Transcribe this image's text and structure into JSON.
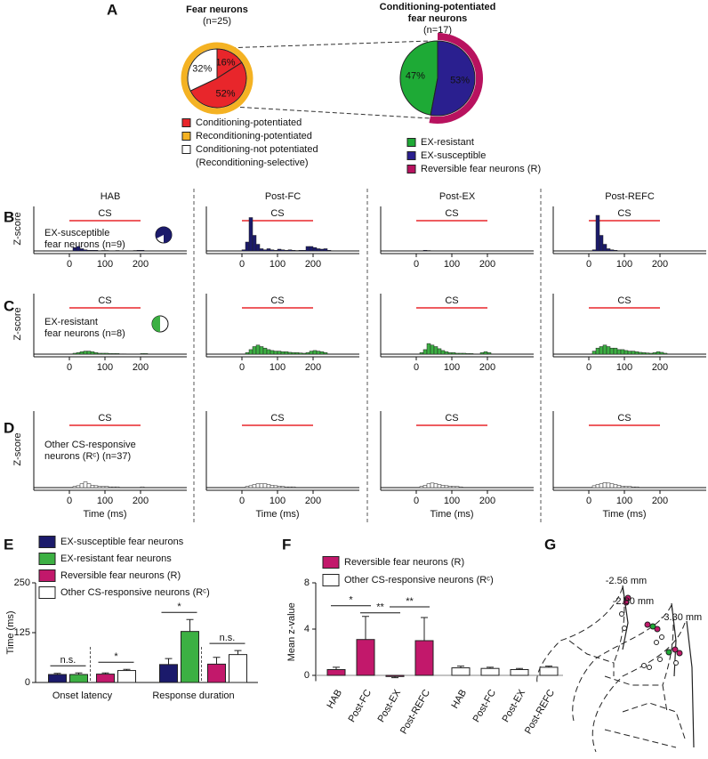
{
  "panel_labels": [
    "A",
    "B",
    "C",
    "D",
    "E",
    "F",
    "G"
  ],
  "chart_data": [
    {
      "type": "pie",
      "title": "Fear neurons",
      "subtitle": "(n=25)",
      "values": [
        16,
        52,
        32
      ],
      "value_labels": [
        "16%",
        "52%",
        "32%"
      ],
      "colors": [
        "#e8262b",
        "#e8262b",
        "#ffffff"
      ],
      "ring": "all",
      "ring_color": "#f4b223",
      "legend": [
        {
          "name": "Conditioning-potentiated",
          "color": "#e8262b"
        },
        {
          "name": "Reconditioning-potentiated",
          "color": "#f4b223"
        },
        {
          "name": "Conditioning-not potentiated",
          "color": "#ffffff"
        }
      ],
      "legend_note": "(Reconditioning-selective)"
    },
    {
      "type": "pie",
      "title": [
        "Conditioning-potentiated",
        "fear neurons"
      ],
      "subtitle": "(n=17)",
      "values": [
        47,
        53
      ],
      "value_labels": [
        "47%",
        "53%"
      ],
      "colors": [
        "#1eaa36",
        "#2a1f8f"
      ],
      "ring": "last",
      "ring_color": "#b8125f",
      "legend": [
        {
          "name": "EX-resistant",
          "color": "#1eaa36"
        },
        {
          "name": "EX-susceptible",
          "color": "#2a1f8f"
        },
        {
          "name": "Reversible fear neurons (R)",
          "color": "#b8125f"
        }
      ]
    },
    {
      "type": "psth",
      "x_label": "Time (ms)",
      "y_label": "Z-score",
      "xlim": [
        -100,
        330
      ],
      "xticks": [
        0,
        100,
        200
      ],
      "ylim": [
        0,
        20
      ],
      "cs_label": "CS",
      "cs_window": [
        0,
        200
      ],
      "bins": [
        0,
        10,
        20,
        30,
        40,
        50,
        60,
        70,
        80,
        90,
        100,
        110,
        120,
        130,
        140,
        150,
        160,
        170,
        180,
        190,
        200,
        210,
        220,
        230,
        240,
        250
      ],
      "columns": [
        "HAB",
        "Post-FC",
        "Post-EX",
        "Post-REFC"
      ],
      "rows": [
        {
          "name": [
            "EX-susceptible",
            "fear neurons (n=9)"
          ],
          "color": "#1b1a6b",
          "series": [
            [
              0,
              1.5,
              2,
              1,
              0.5,
              0.3,
              0.3,
              0.3,
              0,
              0.2,
              0.2,
              0,
              0,
              0.2,
              0,
              0,
              0,
              0,
              0.2,
              0.3,
              0.3,
              0,
              0,
              0,
              0
            ],
            [
              0.5,
              4,
              15,
              7,
              3,
              1,
              0.5,
              1,
              0.5,
              0.3,
              0.8,
              0.5,
              0.3,
              0.5,
              0.3,
              0.2,
              0.3,
              0.3,
              2,
              2,
              1.5,
              1,
              0.8,
              1,
              0.3
            ],
            [
              0,
              0,
              0.3,
              0.2,
              0,
              0,
              0,
              0,
              0,
              0,
              0,
              0,
              0,
              0,
              0,
              0,
              0,
              0,
              0,
              0,
              0,
              0,
              0,
              0,
              0
            ],
            [
              0,
              0.5,
              16,
              7,
              3,
              1,
              0.5,
              0.3,
              0,
              0,
              0,
              0,
              0,
              0,
              0,
              0,
              0,
              0,
              0,
              0,
              0,
              0,
              0,
              0,
              0
            ]
          ]
        },
        {
          "name": [
            "EX-resistant",
            "fear neurons (n=8)"
          ],
          "color": "#3cb043",
          "series": [
            [
              0,
              0.3,
              0.5,
              0.8,
              1,
              1,
              0.8,
              0.5,
              0.3,
              0.3,
              0.3,
              0.2,
              0.2,
              0.2,
              0.1,
              0.1,
              0,
              0,
              0,
              0,
              0.2,
              0.2,
              0,
              0,
              0
            ],
            [
              0,
              0.5,
              1.5,
              2.5,
              3,
              2.5,
              2,
              1.5,
              1.2,
              1,
              1,
              0.8,
              0.8,
              0.6,
              0.5,
              0.5,
              0.4,
              0.3,
              0.5,
              1,
              1.2,
              1,
              0.8,
              0.5,
              0
            ],
            [
              0,
              0.5,
              1.5,
              3.5,
              3,
              2.5,
              1.8,
              1.2,
              0.8,
              0.5,
              0.5,
              0.3,
              0.3,
              0.3,
              0.2,
              0.2,
              0,
              0,
              0.5,
              0.8,
              0.5,
              0,
              0,
              0,
              0
            ],
            [
              0,
              1,
              2,
              2.5,
              3,
              2.5,
              2,
              2,
              1.5,
              1.5,
              1.2,
              1,
              1,
              0.8,
              0.6,
              0.5,
              0.4,
              0.3,
              0.5,
              0.8,
              0.6,
              0.3,
              0,
              0,
              0
            ]
          ]
        },
        {
          "name": [
            "Other CS-responsive",
            "neurons (Rᶜ) (n=37)"
          ],
          "color": "#ffffff",
          "series": [
            [
              0,
              0.3,
              0.5,
              1,
              1.5,
              1,
              0.6,
              0.5,
              0.3,
              0.3,
              0.3,
              0.2,
              0.2,
              0.2,
              0,
              0,
              0,
              0,
              0,
              0,
              0.2,
              0,
              0,
              0,
              0
            ],
            [
              0,
              0.3,
              0.5,
              0.8,
              1,
              1,
              1,
              0.8,
              0.6,
              0.5,
              0.4,
              0.3,
              0.2,
              0.2,
              0.2,
              0,
              0,
              0,
              0,
              0,
              0,
              0,
              0,
              0,
              0
            ],
            [
              0,
              0.3,
              0.6,
              1,
              1.2,
              1,
              0.8,
              0.6,
              0.5,
              0.4,
              0.3,
              0.3,
              0.2,
              0,
              0,
              0,
              0,
              0,
              0,
              0,
              0,
              0,
              0,
              0,
              0
            ],
            [
              0,
              0.5,
              0.8,
              1,
              1.3,
              1.2,
              1,
              0.8,
              0.6,
              0.4,
              0.3,
              0.3,
              0.2,
              0.2,
              0,
              0,
              0,
              0,
              0,
              0,
              0,
              0,
              0,
              0,
              0
            ]
          ]
        }
      ]
    },
    {
      "type": "grouped_bar",
      "y_label": "Time (ms)",
      "ylim": [
        0,
        250
      ],
      "yticks": [
        0,
        125,
        250
      ],
      "categories": [
        "Onset latency",
        "Response duration"
      ],
      "series": [
        {
          "name": "EX-susceptible fear neurons",
          "color": "#1b1a6b",
          "values": [
            20,
            45
          ],
          "errors": [
            3,
            15
          ]
        },
        {
          "name": "EX-resistant fear neurons",
          "color": "#3cb043",
          "values": [
            20,
            128
          ],
          "errors": [
            4,
            30
          ]
        },
        {
          "name": "Reversible fear neurons (R)",
          "color": "#c2186b",
          "values": [
            21,
            46
          ],
          "errors": [
            3,
            17
          ]
        },
        {
          "name": "Other CS-responsive neurons (Rᶜ)",
          "color": "#ffffff",
          "values": [
            30,
            70
          ],
          "errors": [
            3,
            10
          ]
        }
      ],
      "annotations": [
        {
          "text": "n.s.",
          "category": 0,
          "series": [
            0,
            1
          ]
        },
        {
          "text": "*",
          "category": 0,
          "series": [
            2,
            3
          ]
        },
        {
          "text": "*",
          "category": 1,
          "series": [
            0,
            1
          ]
        },
        {
          "text": "n.s.",
          "category": 1,
          "series": [
            2,
            3
          ]
        }
      ]
    },
    {
      "type": "series_bar",
      "y_label": "Mean z-value",
      "ylim": [
        -0.5,
        8
      ],
      "yticks": [
        0,
        4,
        8
      ],
      "categories": [
        "HAB",
        "Post-FC",
        "Post-EX",
        "Post-REFC"
      ],
      "series": [
        {
          "name": "Reversible fear neurons (R)",
          "color": "#c2186b",
          "values": [
            0.5,
            3.1,
            -0.1,
            3.0
          ],
          "errors": [
            0.2,
            2,
            0.1,
            2
          ]
        },
        {
          "name": "Other CS-responsive neurons (Rᶜ)",
          "color": "#ffffff",
          "values": [
            0.65,
            0.6,
            0.5,
            0.7
          ],
          "errors": [
            0.15,
            0.1,
            0.1,
            0.1
          ]
        }
      ],
      "annotations": [
        {
          "text": "*",
          "series": 0,
          "categories": [
            0,
            1
          ]
        },
        {
          "text": "**",
          "series": 0,
          "categories": [
            1,
            2
          ]
        },
        {
          "text": "**",
          "series": 0,
          "categories": [
            2,
            3
          ]
        }
      ]
    }
  ],
  "panel_g": {
    "labels": [
      "-2.56 mm",
      "-2.80 mm",
      "-3.30 mm"
    ]
  }
}
